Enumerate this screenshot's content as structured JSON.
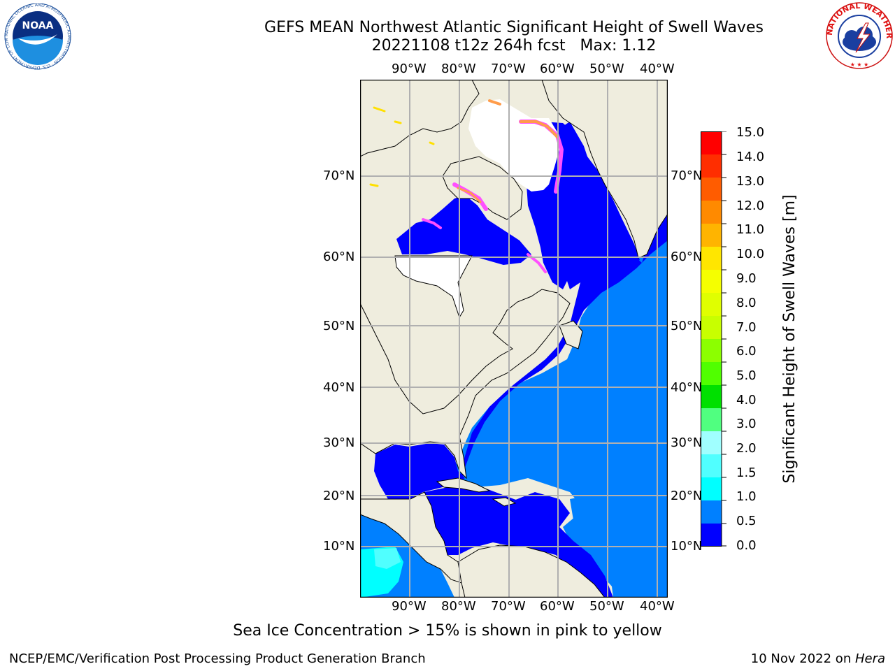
{
  "title": {
    "line1": "GEFS MEAN Northwest Atlantic Significant Height of Swell Waves",
    "line2": "20221108 t12z 264h fcst   Max: 1.12"
  },
  "map": {
    "longitude_labels": [
      "90°W",
      "80°W",
      "70°W",
      "60°W",
      "50°W",
      "40°W"
    ],
    "latitude_labels": [
      "70°N",
      "60°N",
      "50°N",
      "40°N",
      "30°N",
      "20°N",
      "10°N"
    ],
    "colors": {
      "land": "#efedde",
      "ocean_low": "#0000ff",
      "ocean_mid": "#0080ff",
      "ocean_cyan": "#00ffff",
      "ice_pink": "#ff50ff",
      "ice_orange": "#ff9c4a",
      "ice_yellow": "#ffe000",
      "gridline": "#b0b0b0"
    }
  },
  "colorbar": {
    "title": "Significant Height of Swell Waves [m]",
    "tick_labels": [
      "15.0",
      "14.0",
      "13.0",
      "12.0",
      "11.0",
      "10.0",
      "9.0",
      "8.0",
      "7.0",
      "6.0",
      "5.0",
      "4.0",
      "3.0",
      "2.0",
      "1.5",
      "1.0",
      "0.5",
      "0.0"
    ],
    "colors": [
      "#ff0000",
      "#ff2e00",
      "#ff5c00",
      "#ff8a00",
      "#ffb400",
      "#ffe600",
      "#f5ff00",
      "#e0ff00",
      "#c8ff00",
      "#8cff00",
      "#50ff00",
      "#00e000",
      "#50ff80",
      "#a0ffff",
      "#50ffff",
      "#00ffff",
      "#0080ff",
      "#0000ff"
    ]
  },
  "footnote": "Sea Ice Concentration > 15% is shown in pink to yellow",
  "credit_left": "NCEP/EMC/Verification Post Processing Product Generation Branch",
  "credit_right": {
    "date": "10 Nov 2022 on ",
    "host": "Hera"
  },
  "logos": {
    "noaa": {
      "center_text": "NOAA",
      "ring_text": "NATIONAL OCEANIC AND ATMOSPHERIC ADMINISTRATION · U.S. DEPARTMENT OF COMMERCE"
    },
    "nws": {
      "ring_text": "NATIONAL WEATHER SERVICE"
    }
  }
}
